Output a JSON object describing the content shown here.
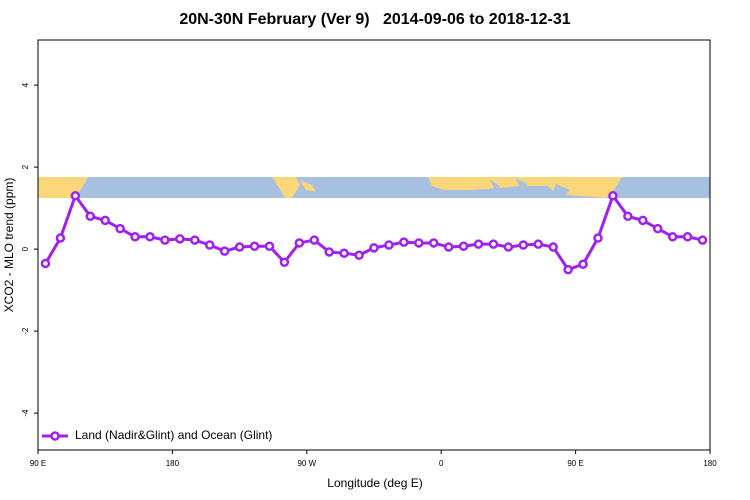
{
  "chart_data": {
    "type": "line",
    "title": "20N-30N February (Ver 9)   2014-09-06 to 2018-12-31",
    "x_label": "Longitude (deg E)",
    "y_label": "XCO2 - MLO trend (ppm)",
    "x": [
      95,
      105,
      115,
      125,
      135,
      145,
      155,
      165,
      175,
      185,
      195,
      205,
      215,
      225,
      235,
      245,
      255,
      265,
      275,
      285,
      295,
      305,
      315,
      325,
      335,
      345,
      355,
      365,
      375,
      385,
      395,
      405,
      415,
      425,
      435,
      445,
      455,
      465,
      475,
      485,
      495,
      505,
      515,
      525,
      535
    ],
    "series": [
      {
        "name": "Land (Nadir&Glint) and Ocean (Glint)",
        "color": "#a020f0",
        "values": [
          -0.35,
          0.27,
          1.3,
          0.8,
          0.7,
          0.5,
          0.3,
          0.3,
          0.22,
          0.25,
          0.22,
          0.1,
          -0.05,
          0.05,
          0.07,
          0.07,
          -0.32,
          0.15,
          0.22,
          -0.07,
          -0.1,
          -0.15,
          0.03,
          0.1,
          0.17,
          0.15,
          0.15,
          0.05,
          0.07,
          0.12,
          0.12,
          0.05,
          0.1,
          0.12,
          0.05,
          -0.5,
          -0.37,
          0.27,
          1.3,
          0.8,
          0.7,
          0.5,
          0.3,
          0.3,
          0.22
        ]
      }
    ],
    "xlim": [
      90,
      540
    ],
    "xticks": [
      {
        "value": 90,
        "label": "90 E"
      },
      180,
      {
        "value": 270,
        "label": "90 W"
      },
      {
        "value": 360,
        "label": "0"
      },
      {
        "value": 450,
        "label": "90 E"
      },
      {
        "value": 540,
        "label": "180"
      }
    ],
    "ylim": [
      -4.9,
      5.1
    ],
    "yticks": [
      -4,
      -2,
      0,
      2,
      4
    ],
    "legend": "bottom-left"
  }
}
